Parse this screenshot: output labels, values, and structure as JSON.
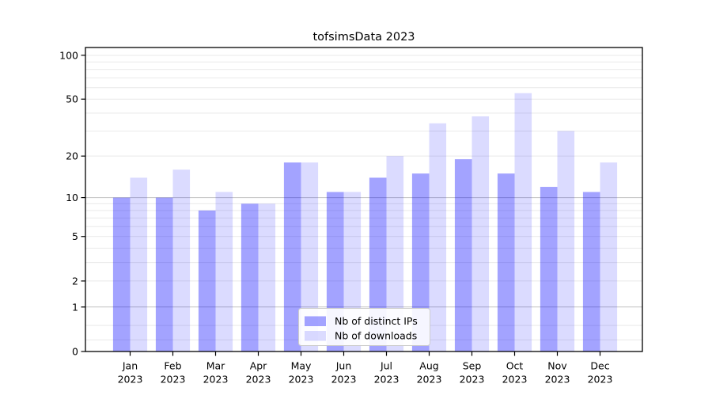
{
  "title": "tofsimsData 2023",
  "colors": {
    "background": "#ffffff",
    "bar_base_blue": "#0000ff",
    "ips_bar": "rgba(0,0,255,0.36)",
    "downloads_bar": "rgba(0,0,255,0.14)",
    "ips_bar_approx_hex": "#a4a4f6",
    "downloads_bar_approx_hex": "#dcdcfb",
    "grid_minor": "#e9e9e9",
    "grid_major": "#c3c3c3",
    "axis_spine": "#000000",
    "legend_border": "#cccccc",
    "legend_background": "#ffffff"
  },
  "chart_data": {
    "type": "bar",
    "title": "tofsimsData 2023",
    "xlabel": "",
    "ylabel": "",
    "yscale": "log1p",
    "ylim": [
      0,
      113
    ],
    "yticks": [
      100,
      50,
      20,
      10,
      5,
      2,
      1,
      0
    ],
    "grid": {
      "values": [
        0.2,
        0.5,
        1,
        2,
        3,
        4,
        5,
        6,
        7,
        8,
        9,
        10,
        20,
        30,
        40,
        50,
        60,
        70,
        80,
        90,
        100
      ],
      "major_values": [
        1,
        10
      ]
    },
    "categories": [
      "Jan 2023",
      "Feb 2023",
      "Mar 2023",
      "Apr 2023",
      "May 2023",
      "Jun 2023",
      "Jul 2023",
      "Aug 2023",
      "Sep 2023",
      "Oct 2023",
      "Nov 2023",
      "Dec 2023"
    ],
    "series": [
      {
        "name": "Nb of distinct IPs",
        "key": "ips",
        "values": [
          10,
          10,
          8,
          9,
          18,
          11,
          14,
          15,
          19,
          15,
          12,
          11
        ]
      },
      {
        "name": "Nb of downloads",
        "key": "downloads",
        "values": [
          14,
          16,
          11,
          9,
          18,
          11,
          20,
          34,
          38,
          55,
          30,
          18
        ]
      }
    ],
    "legend_position": "lower center"
  }
}
